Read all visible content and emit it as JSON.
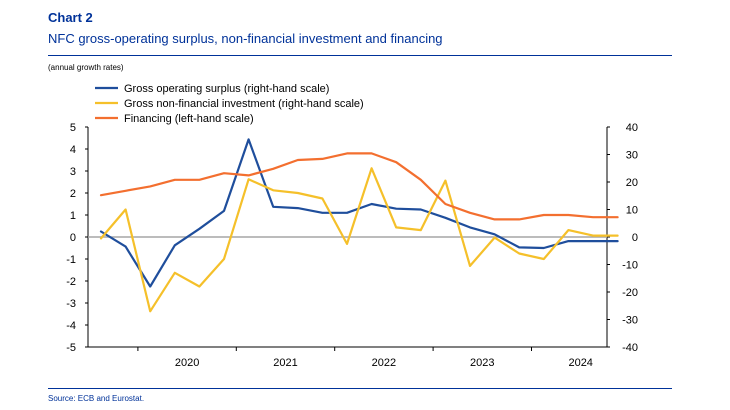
{
  "header": {
    "label": "Chart 2",
    "title": "NFC gross-operating surplus, non-financial investment and financing",
    "subtitle": "(annual growth rates)"
  },
  "footer": {
    "source": "Source: ECB and Eurostat."
  },
  "chart_data": {
    "type": "line",
    "x": [
      "2019Q3",
      "2019Q4",
      "2020Q1",
      "2020Q2",
      "2020Q3",
      "2020Q4",
      "2021Q1",
      "2021Q2",
      "2021Q3",
      "2021Q4",
      "2022Q1",
      "2022Q2",
      "2022Q3",
      "2022Q4",
      "2023Q1",
      "2023Q2",
      "2023Q3",
      "2023Q4",
      "2024Q1",
      "2024Q2",
      "2024Q3",
      "2024Q4"
    ],
    "x_tick_labels": [
      "2020",
      "2021",
      "2022",
      "2023",
      "2024"
    ],
    "left_axis": {
      "ticks": [
        "5",
        "4",
        "3",
        "2",
        "1",
        "0",
        "-1",
        "-2",
        "-3",
        "-4",
        "-5"
      ],
      "ylim": [
        -5,
        5
      ]
    },
    "right_axis": {
      "ticks": [
        "40",
        "30",
        "20",
        "10",
        "0",
        "-10",
        "-20",
        "-30",
        "-40"
      ],
      "ylim": [
        -40,
        40
      ]
    },
    "series": [
      {
        "name": "Gross operating surplus (right-hand scale)",
        "axis": "right",
        "color": "#1f4e9c",
        "values": [
          2,
          -3.5,
          -18,
          -3,
          3,
          9.5,
          35.5,
          11,
          10.5,
          8.8,
          8.8,
          12,
          10.3,
          10,
          7,
          3.5,
          1,
          -3.8,
          -4,
          -1.5,
          -1.5,
          -1.5
        ]
      },
      {
        "name": "Gross non-financial investment (right-hand scale)",
        "axis": "right",
        "color": "#f5c02a",
        "values": [
          -0.5,
          10,
          -27,
          -13,
          -18,
          -8,
          21,
          17,
          16,
          14,
          -2.5,
          25,
          3.5,
          2.5,
          20.5,
          -10.5,
          -0.2,
          -6,
          -8,
          2.5,
          0.5,
          0.5
        ]
      },
      {
        "name": "Financing (left-hand scale)",
        "axis": "left",
        "color": "#f36f2f",
        "values": [
          1.9,
          2.1,
          2.3,
          2.6,
          2.6,
          2.9,
          2.8,
          3.1,
          3.5,
          3.55,
          3.8,
          3.8,
          3.4,
          2.6,
          1.5,
          1.1,
          0.8,
          0.8,
          1.0,
          1.0,
          0.9,
          0.9
        ]
      }
    ],
    "legend_position": "top-left",
    "zero_line": true,
    "grid": false
  }
}
